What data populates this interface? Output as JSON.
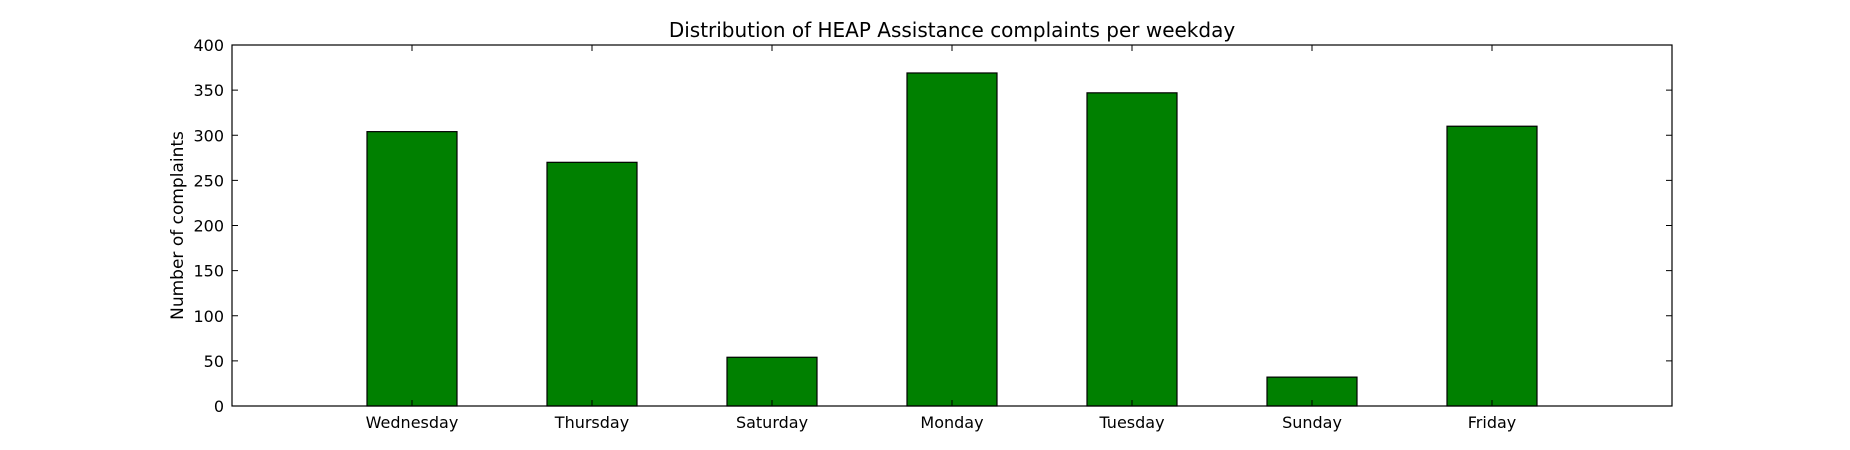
{
  "chart_data": {
    "type": "bar",
    "title": "Distribution of  HEAP Assistance complaints per weekday",
    "xlabel": "",
    "ylabel": "Number of complaints",
    "categories": [
      "Wednesday",
      "Thursday",
      "Saturday",
      "Monday",
      "Tuesday",
      "Sunday",
      "Friday"
    ],
    "values": [
      304,
      270,
      54,
      369,
      347,
      32,
      310
    ],
    "ylim": [
      0,
      400
    ],
    "yticks": [
      0,
      50,
      100,
      150,
      200,
      250,
      300,
      350,
      400
    ],
    "bar_color": "#008000",
    "edge_color": "#000000",
    "grid": false,
    "legend": "none"
  }
}
